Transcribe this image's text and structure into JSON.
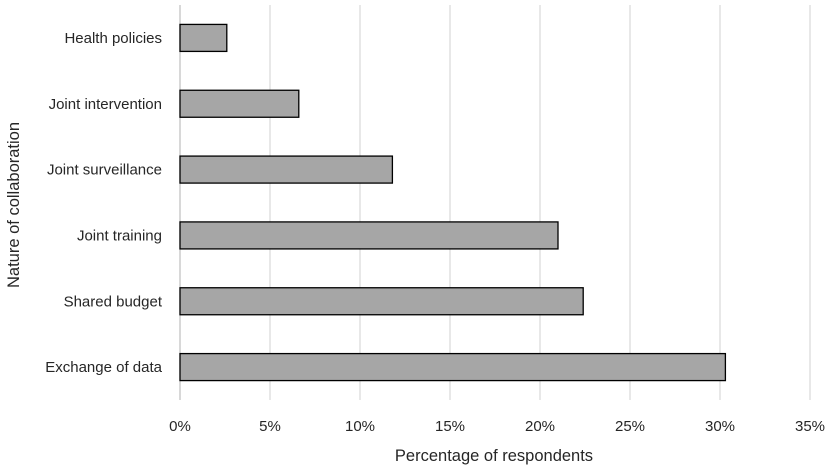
{
  "chart_data": {
    "type": "bar",
    "orientation": "horizontal",
    "title": "",
    "xlabel": "Percentage of respondents",
    "ylabel": "Nature of collaboration",
    "categories": [
      "Health policies",
      "Joint intervention",
      "Joint surveillance",
      "Joint training",
      "Shared budget",
      "Exchange of data"
    ],
    "values": [
      2.6,
      6.6,
      11.8,
      21.0,
      22.4,
      30.3
    ],
    "xlim": [
      0,
      35
    ],
    "x_ticks": [
      0,
      5,
      10,
      15,
      20,
      25,
      30,
      35
    ],
    "x_tick_labels": [
      "0%",
      "5%",
      "10%",
      "15%",
      "20%",
      "25%",
      "30%",
      "35%"
    ],
    "grid": "vertical",
    "legend": "none",
    "colors": {
      "bar_fill": "#a6a6a6",
      "bar_edge": "#000000",
      "grid": "#d9d9d9",
      "text": "#262626"
    }
  }
}
